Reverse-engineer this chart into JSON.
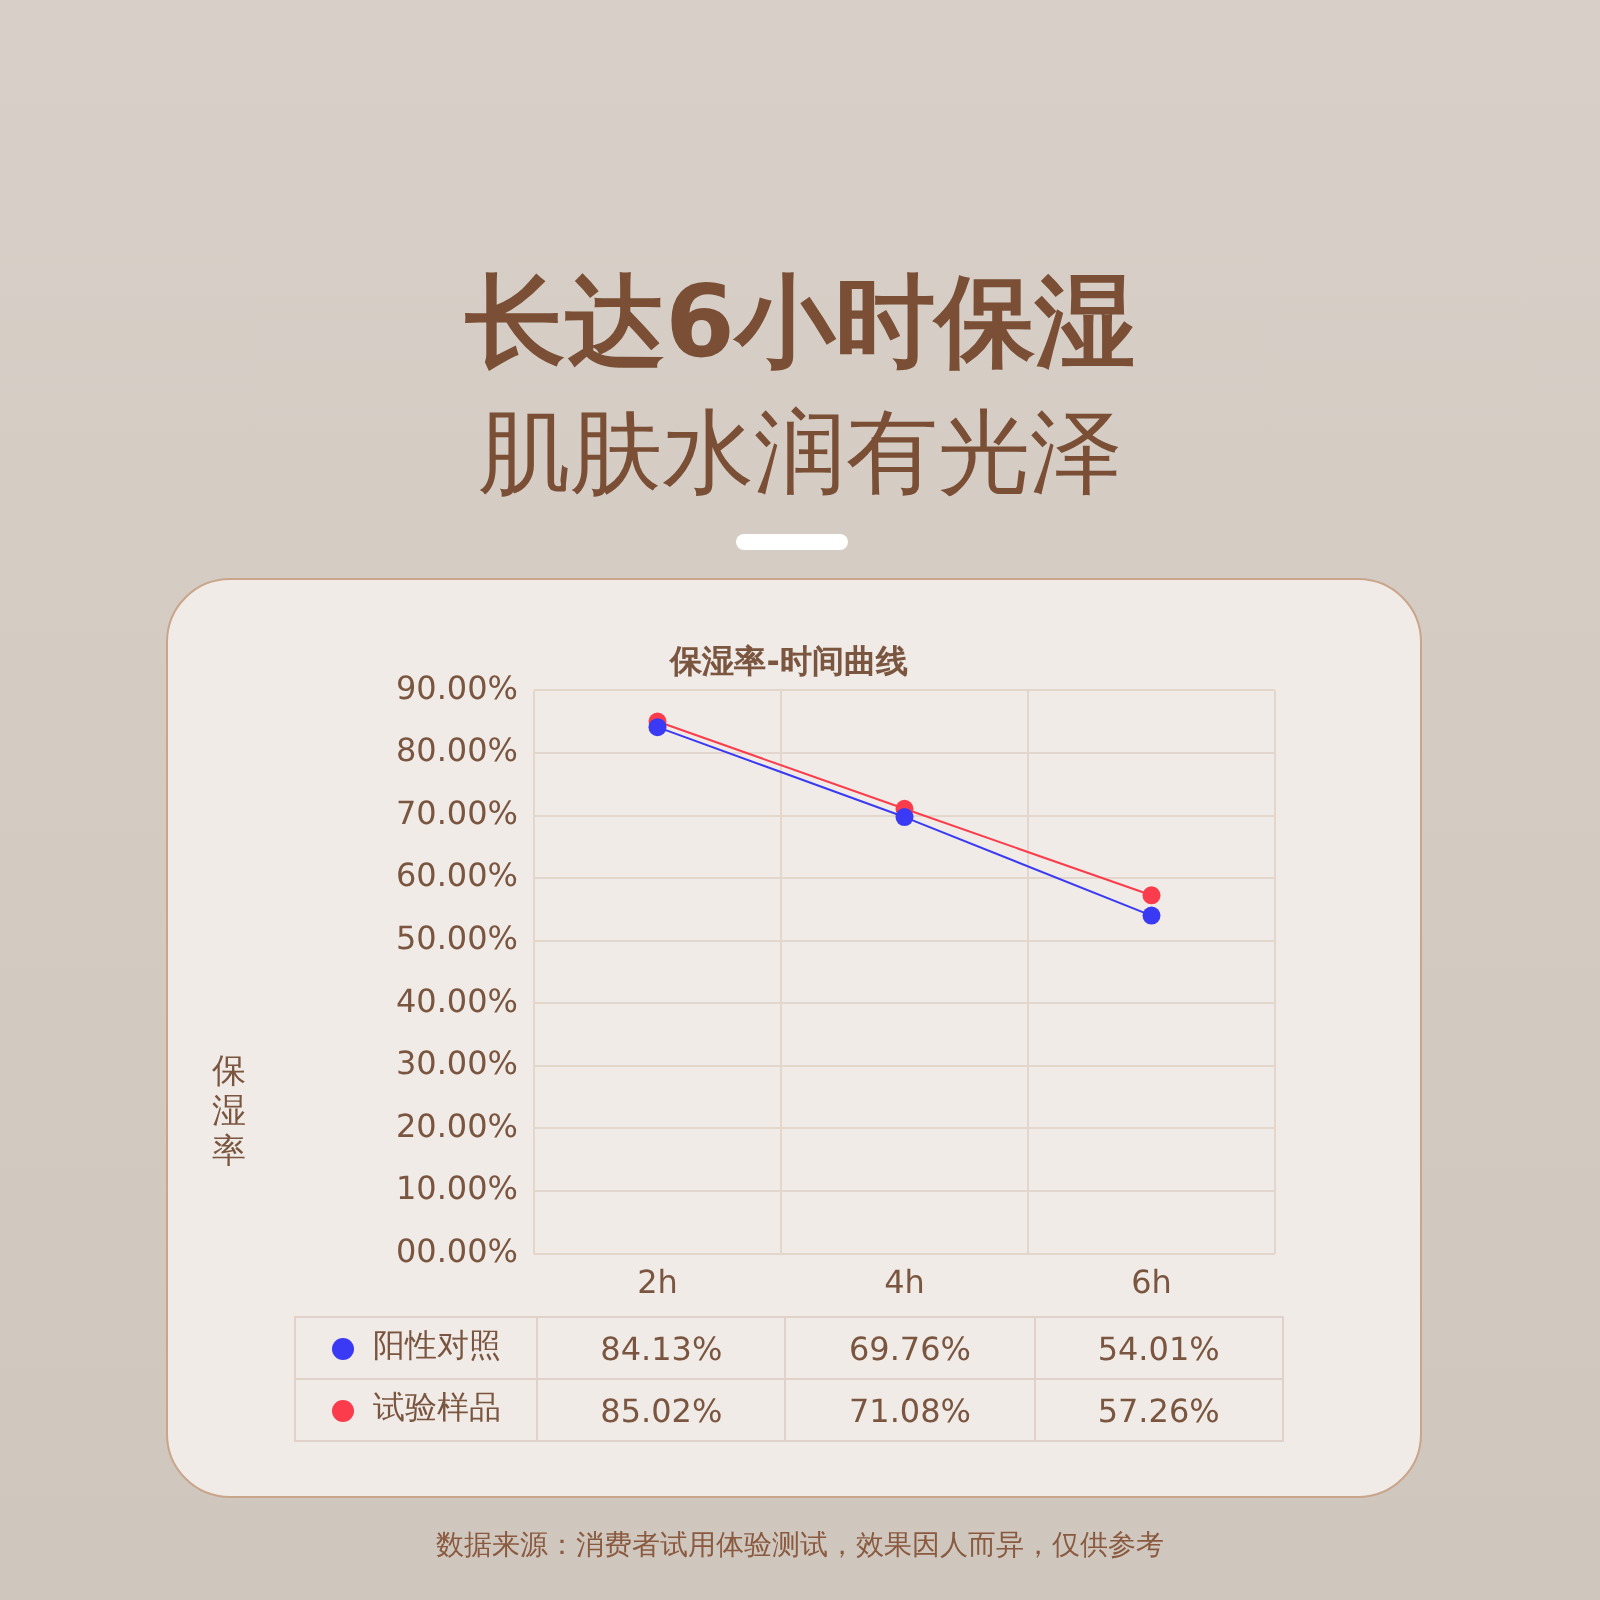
{
  "chart_data": {
    "type": "line",
    "title": "保湿率-时间曲线",
    "ylabel": "保湿率",
    "categories": [
      "2h",
      "4h",
      "6h"
    ],
    "series": [
      {
        "name": "阳性对照",
        "color": "#3a3af5",
        "values": [
          84.13,
          69.76,
          54.01
        ],
        "value_labels": [
          "84.13%",
          "69.76%",
          "54.01%"
        ]
      },
      {
        "name": "试验样品",
        "color": "#fa3c4c",
        "values": [
          85.02,
          71.08,
          57.26
        ],
        "value_labels": [
          "85.02%",
          "71.08%",
          "57.26%"
        ]
      }
    ],
    "ylim": [
      0,
      90
    ],
    "yticks": [
      {
        "value": 0,
        "label": "00.00%"
      },
      {
        "value": 10,
        "label": "10.00%"
      },
      {
        "value": 20,
        "label": "20.00%"
      },
      {
        "value": 30,
        "label": "30.00%"
      },
      {
        "value": 40,
        "label": "40.00%"
      },
      {
        "value": 50,
        "label": "50.00%"
      },
      {
        "value": 60,
        "label": "60.00%"
      },
      {
        "value": 70,
        "label": "70.00%"
      },
      {
        "value": 80,
        "label": "80.00%"
      },
      {
        "value": 90,
        "label": "90.00%"
      }
    ],
    "grid": true,
    "legend": "bottom",
    "marker": "circle",
    "line_style": "solid",
    "annotations": [
      "长达6小时保湿",
      "肌肤水润有光泽",
      "数据来源：消费者试用体验测试，效果因人而异，仅供参考"
    ]
  }
}
